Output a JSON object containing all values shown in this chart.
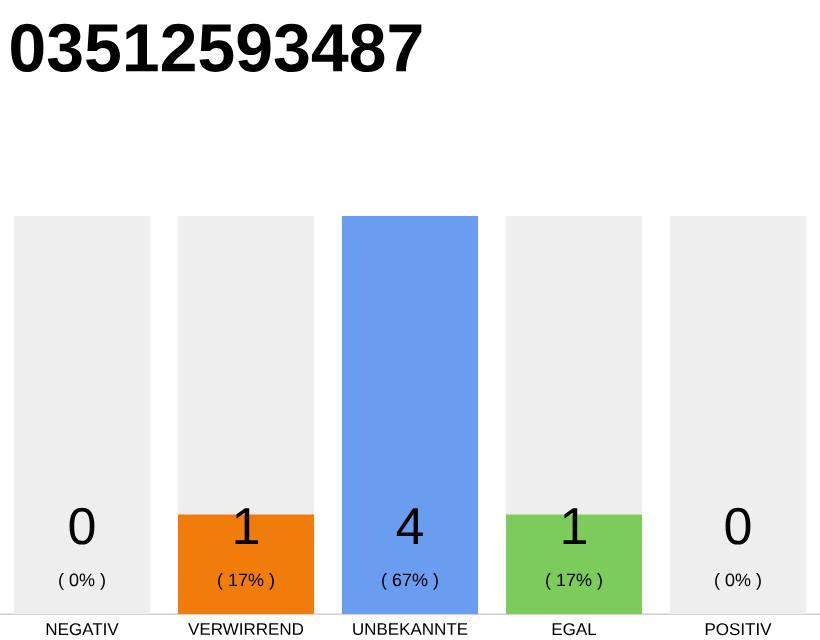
{
  "chart_data": {
    "type": "bar",
    "title": "03512593487",
    "categories": [
      "NEGATIV",
      "VERWIRREND",
      "UNBEKANNTE",
      "EGAL",
      "POSITIV"
    ],
    "series": [
      {
        "color": "#eeeeee",
        "values": [
          4,
          4,
          null,
          4,
          4
        ]
      },
      {
        "colors": [
          "#eeeeee",
          "#f07c0c",
          "#6a9df0",
          "#7ccc5c",
          "#eeeeee"
        ],
        "values": [
          0,
          1,
          4,
          1,
          0
        ],
        "value_labels": [
          "0",
          "1",
          "4",
          "1",
          "0"
        ]
      }
    ],
    "stacked": false,
    "tick_labels": "x",
    "annotations": [
      "( 0% )",
      "( 17% )",
      "( 67% )",
      "( 17% )",
      "( 0% )"
    ]
  }
}
